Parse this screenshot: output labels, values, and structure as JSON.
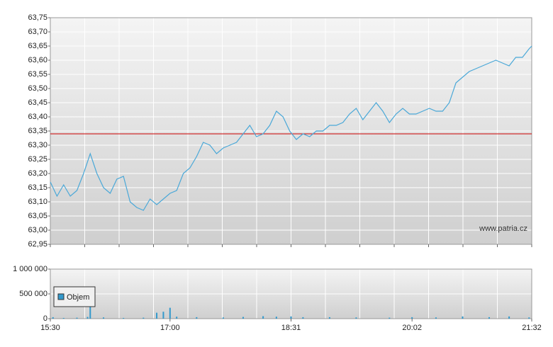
{
  "chart_data": [
    {
      "type": "line",
      "annotation": "www.patria.cz",
      "xlim": [
        "15:30",
        "21:32"
      ],
      "x": [
        "15:30",
        "15:35",
        "15:40",
        "15:45",
        "15:50",
        "15:55",
        "16:00",
        "16:05",
        "16:10",
        "16:15",
        "16:20",
        "16:25",
        "16:30",
        "16:35",
        "16:40",
        "16:45",
        "16:50",
        "16:55",
        "17:00",
        "17:05",
        "17:10",
        "17:15",
        "17:20",
        "17:25",
        "17:30",
        "17:35",
        "17:40",
        "17:45",
        "17:50",
        "17:55",
        "18:00",
        "18:05",
        "18:10",
        "18:15",
        "18:20",
        "18:25",
        "18:30",
        "18:35",
        "18:40",
        "18:45",
        "18:50",
        "18:55",
        "19:00",
        "19:05",
        "19:10",
        "19:15",
        "19:20",
        "19:25",
        "19:30",
        "19:35",
        "19:40",
        "19:45",
        "19:50",
        "19:55",
        "20:00",
        "20:05",
        "20:10",
        "20:15",
        "20:20",
        "20:25",
        "20:30",
        "20:35",
        "20:40",
        "20:45",
        "20:50",
        "20:55",
        "21:00",
        "21:05",
        "21:10",
        "21:15",
        "21:20",
        "21:25",
        "21:30",
        "21:32"
      ],
      "values": [
        63.17,
        63.12,
        63.16,
        63.12,
        63.14,
        63.2,
        63.27,
        63.2,
        63.15,
        63.13,
        63.18,
        63.19,
        63.1,
        63.08,
        63.07,
        63.11,
        63.09,
        63.11,
        63.13,
        63.14,
        63.2,
        63.22,
        63.26,
        63.31,
        63.3,
        63.27,
        63.29,
        63.3,
        63.31,
        63.34,
        63.37,
        63.33,
        63.34,
        63.37,
        63.42,
        63.4,
        63.35,
        63.32,
        63.34,
        63.33,
        63.35,
        63.35,
        63.37,
        63.37,
        63.38,
        63.41,
        63.43,
        63.39,
        63.42,
        63.45,
        63.42,
        63.38,
        63.41,
        63.43,
        63.41,
        63.41,
        63.42,
        63.43,
        63.42,
        63.42,
        63.45,
        63.52,
        63.54,
        63.56,
        63.57,
        63.58,
        63.59,
        63.6,
        63.59,
        63.58,
        63.61,
        63.61,
        63.64,
        63.65
      ],
      "color": "#4aa8d8",
      "reference_line": {
        "value": 63.34,
        "color": "#cc0000"
      },
      "ylim": [
        62.95,
        63.75
      ],
      "yticks": [
        {
          "value": 62.95,
          "label": "62,95"
        },
        {
          "value": 63.0,
          "label": "63,00"
        },
        {
          "value": 63.05,
          "label": "63,05"
        },
        {
          "value": 63.1,
          "label": "63,10"
        },
        {
          "value": 63.15,
          "label": "63,15"
        },
        {
          "value": 63.2,
          "label": "63,20"
        },
        {
          "value": 63.25,
          "label": "63,25"
        },
        {
          "value": 63.3,
          "label": "63,30"
        },
        {
          "value": 63.35,
          "label": "63,35"
        },
        {
          "value": 63.4,
          "label": "63,40"
        },
        {
          "value": 63.45,
          "label": "63,45"
        },
        {
          "value": 63.5,
          "label": "63,50"
        },
        {
          "value": 63.55,
          "label": "63,55"
        },
        {
          "value": 63.6,
          "label": "63,60"
        },
        {
          "value": 63.65,
          "label": "63,65"
        },
        {
          "value": 63.7,
          "label": "63,70"
        },
        {
          "value": 63.75,
          "label": "63,75"
        }
      ],
      "grid": true
    },
    {
      "type": "bar",
      "x": [
        "15:32",
        "15:40",
        "15:50",
        "15:58",
        "16:00",
        "16:10",
        "16:25",
        "16:40",
        "16:50",
        "16:55",
        "17:00",
        "17:05",
        "17:20",
        "17:40",
        "17:55",
        "18:10",
        "18:20",
        "18:31",
        "18:40",
        "19:00",
        "19:20",
        "19:45",
        "20:02",
        "20:20",
        "20:40",
        "21:00",
        "21:15",
        "21:30"
      ],
      "series": [
        {
          "name": "Objem",
          "color": "#3399cc",
          "values": [
            30000,
            15000,
            20000,
            35000,
            650000,
            25000,
            15000,
            20000,
            120000,
            140000,
            220000,
            40000,
            30000,
            25000,
            35000,
            50000,
            40000,
            45000,
            30000,
            30000,
            25000,
            20000,
            30000,
            25000,
            45000,
            30000,
            45000,
            25000
          ]
        }
      ],
      "ylim": [
        0,
        1000000
      ],
      "yticks": [
        0,
        {
          "value": 500000,
          "label": "500 000"
        },
        {
          "value": 1000000,
          "label": "1 000 000"
        }
      ],
      "xticks": [
        "15:30",
        "17:00",
        "18:31",
        "20:02",
        "21:32"
      ],
      "grid": true
    }
  ]
}
